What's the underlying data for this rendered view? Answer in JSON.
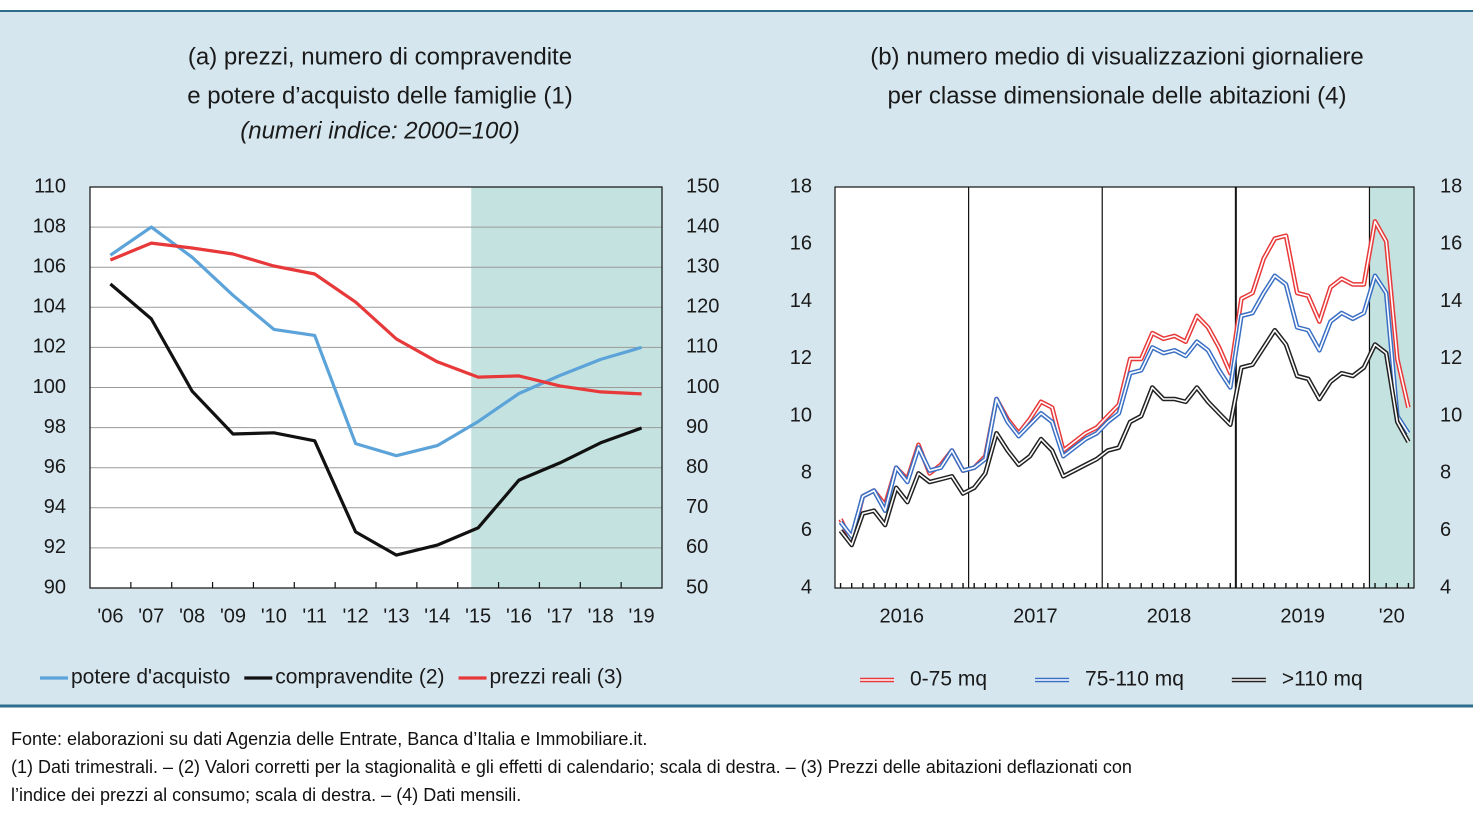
{
  "chart_data": [
    {
      "type": "line",
      "title": [
        "(a) prezzi, numero di compravendite",
        "e potere d’acquisto delle famiglie (1)"
      ],
      "subtitle": "(numeri indice: 2000=100)",
      "categories": [
        "'06",
        "'07",
        "'08",
        "'09",
        "'10",
        "'11",
        "'12",
        "'13",
        "'14",
        "'15",
        "'16",
        "'17",
        "'18",
        "'19"
      ],
      "ylim": [
        90,
        110
      ],
      "yticks": [
        90,
        92,
        94,
        96,
        98,
        100,
        102,
        104,
        106,
        108,
        110
      ],
      "y2lim": [
        50,
        150
      ],
      "y2ticks": [
        50,
        60,
        70,
        80,
        90,
        100,
        110,
        120,
        130,
        140,
        150
      ],
      "grid": true,
      "shade_from": "'15",
      "legend": "bottom",
      "line_style": "single",
      "series": [
        {
          "name": "potere d'acquisto",
          "color": "#5ba3d9",
          "values": [
            106.6,
            108.0,
            106.5,
            104.6,
            102.9,
            102.6,
            97.2,
            96.6,
            97.1,
            98.3,
            99.7,
            100.6,
            101.4,
            102.0
          ]
        },
        {
          "name": "compravendite (2)",
          "color": "#111111",
          "axis": "y2",
          "values": [
            125.8,
            117.1,
            99.1,
            88.4,
            88.7,
            86.7,
            64.0,
            58.2,
            60.7,
            65.0,
            76.9,
            81.2,
            86.2,
            89.9
          ]
        },
        {
          "name": "prezzi reali (3)",
          "color": "#e8393a",
          "axis": "y2",
          "values": [
            131.8,
            136.0,
            134.8,
            133.3,
            130.3,
            128.3,
            121.3,
            112.1,
            106.4,
            102.6,
            102.9,
            100.4,
            98.9,
            98.4
          ]
        }
      ]
    },
    {
      "type": "line",
      "title": [
        "(b) numero medio di visualizzazioni giornaliere",
        "per classe dimensionale delle abitazioni (4)"
      ],
      "x": [
        "2016-01",
        "2016-02",
        "2016-03",
        "2016-04",
        "2016-05",
        "2016-06",
        "2016-07",
        "2016-08",
        "2016-09",
        "2016-10",
        "2016-11",
        "2016-12",
        "2017-01",
        "2017-02",
        "2017-03",
        "2017-04",
        "2017-05",
        "2017-06",
        "2017-07",
        "2017-08",
        "2017-09",
        "2017-10",
        "2017-11",
        "2017-12",
        "2018-01",
        "2018-02",
        "2018-03",
        "2018-04",
        "2018-05",
        "2018-06",
        "2018-07",
        "2018-08",
        "2018-09",
        "2018-10",
        "2018-11",
        "2018-12",
        "2019-01",
        "2019-02",
        "2019-03",
        "2019-04",
        "2019-05",
        "2019-06",
        "2019-07",
        "2019-08",
        "2019-09",
        "2019-10",
        "2019-11",
        "2019-12",
        "2020-01",
        "2020-02",
        "2020-03",
        "2020-04"
      ],
      "x_groups": [
        "2016",
        "2017",
        "2018",
        "2019",
        "'20"
      ],
      "ylim": [
        4,
        18
      ],
      "yticks": [
        4,
        6,
        8,
        10,
        12,
        14,
        16,
        18
      ],
      "y2lim": [
        4,
        18
      ],
      "y2ticks": [
        4,
        6,
        8,
        10,
        12,
        14,
        16,
        18
      ],
      "grid": false,
      "shade_from": "2020-01",
      "legend": "bottom",
      "line_style": "double",
      "series": [
        {
          "name": "0-75 mq",
          "color": "#e8393a",
          "values": [
            6.4,
            5.6,
            7.2,
            7.4,
            6.9,
            8.2,
            7.8,
            9.0,
            8.0,
            8.3,
            8.8,
            8.1,
            8.2,
            8.6,
            10.6,
            9.9,
            9.4,
            9.9,
            10.5,
            10.3,
            8.8,
            9.1,
            9.4,
            9.6,
            10.0,
            10.4,
            12.0,
            12.0,
            12.9,
            12.7,
            12.8,
            12.6,
            13.5,
            13.1,
            12.4,
            11.5,
            14.1,
            14.3,
            15.5,
            16.2,
            16.3,
            14.3,
            14.2,
            13.3,
            14.5,
            14.8,
            14.6,
            14.6,
            16.8,
            16.1,
            12.0,
            10.3
          ]
        },
        {
          "name": "75-110 mq",
          "color": "#3a6fc4",
          "values": [
            6.3,
            5.8,
            7.2,
            7.4,
            6.7,
            8.2,
            7.7,
            8.9,
            8.1,
            8.2,
            8.8,
            8.1,
            8.2,
            8.5,
            10.6,
            9.8,
            9.3,
            9.7,
            10.1,
            9.8,
            8.6,
            8.9,
            9.2,
            9.4,
            9.8,
            10.1,
            11.5,
            11.6,
            12.4,
            12.2,
            12.3,
            12.1,
            12.6,
            12.3,
            11.6,
            11.0,
            13.5,
            13.6,
            14.3,
            14.9,
            14.6,
            13.1,
            13.0,
            12.3,
            13.3,
            13.6,
            13.4,
            13.6,
            14.9,
            14.3,
            10.0,
            9.4
          ]
        },
        {
          "name": ">110 mq",
          "color": "#222222",
          "values": [
            6.0,
            5.5,
            6.6,
            6.7,
            6.2,
            7.5,
            7.0,
            8.0,
            7.7,
            7.8,
            7.9,
            7.3,
            7.5,
            8.0,
            9.4,
            8.8,
            8.3,
            8.6,
            9.2,
            8.8,
            7.9,
            8.1,
            8.3,
            8.5,
            8.8,
            8.9,
            9.8,
            10.0,
            11.0,
            10.6,
            10.6,
            10.5,
            11.0,
            10.5,
            10.1,
            9.7,
            11.7,
            11.8,
            12.4,
            13.0,
            12.5,
            11.4,
            11.3,
            10.6,
            11.2,
            11.5,
            11.4,
            11.7,
            12.5,
            12.2,
            9.8,
            9.1
          ]
        }
      ]
    }
  ],
  "notes": [
    "Fonte: elaborazioni su dati Agenzia delle Entrate, Banca d’Italia e Immobiliare.it.",
    "(1) Dati trimestrali. – (2) Valori corretti per la stagionalità e gli effetti di calendario; scala di destra. – (3) Prezzi delle abitazioni deflazionati con",
    "l’indice dei prezzi al consumo; scala di destra. – (4) Dati mensili."
  ]
}
